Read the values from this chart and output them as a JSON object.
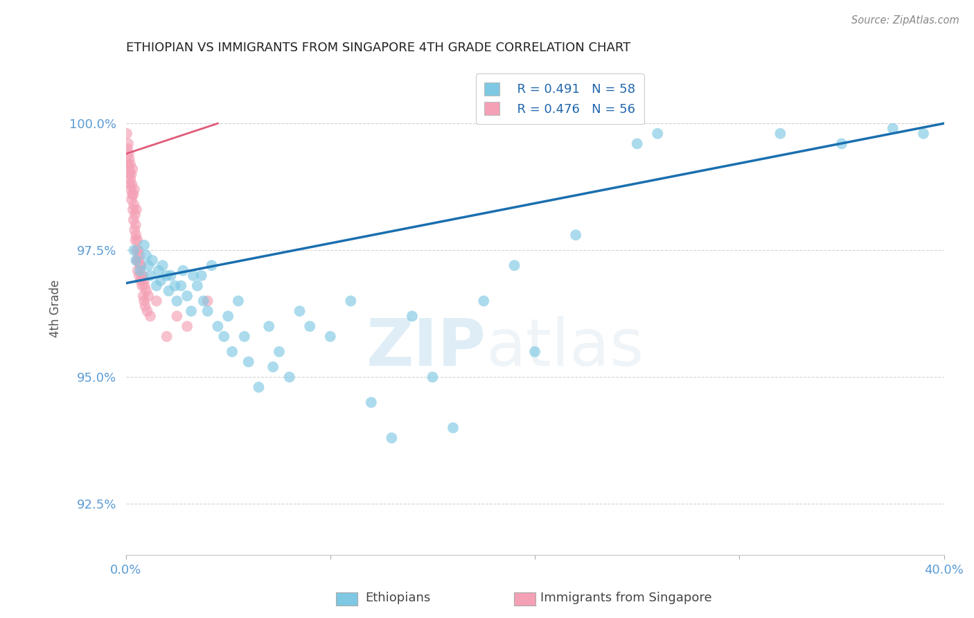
{
  "title": "ETHIOPIAN VS IMMIGRANTS FROM SINGAPORE 4TH GRADE CORRELATION CHART",
  "source": "Source: ZipAtlas.com",
  "ylabel": "4th Grade",
  "xlim": [
    0.0,
    40.0
  ],
  "ylim": [
    91.5,
    101.2
  ],
  "yticks": [
    92.5,
    95.0,
    97.5,
    100.0
  ],
  "ytick_labels": [
    "92.5%",
    "95.0%",
    "97.5%",
    "100.0%"
  ],
  "xticks": [
    0.0,
    10.0,
    20.0,
    30.0,
    40.0
  ],
  "xtick_labels": [
    "0.0%",
    "",
    "",
    "",
    "40.0%"
  ],
  "legend_R_blue": "R = 0.491",
  "legend_N_blue": "N = 58",
  "legend_R_pink": "R = 0.476",
  "legend_N_pink": "N = 56",
  "blue_color": "#7ec8e3",
  "pink_color": "#f4a0b5",
  "blue_line_color": "#1a6faf",
  "pink_line_color": "#e05a7a",
  "blue_scatter": [
    [
      0.4,
      97.5
    ],
    [
      0.5,
      97.3
    ],
    [
      0.7,
      97.1
    ],
    [
      0.9,
      97.6
    ],
    [
      1.0,
      97.4
    ],
    [
      1.1,
      97.2
    ],
    [
      1.2,
      97.0
    ],
    [
      1.3,
      97.3
    ],
    [
      1.5,
      96.8
    ],
    [
      1.6,
      97.1
    ],
    [
      1.7,
      96.9
    ],
    [
      1.8,
      97.2
    ],
    [
      2.0,
      97.0
    ],
    [
      2.1,
      96.7
    ],
    [
      2.2,
      97.0
    ],
    [
      2.4,
      96.8
    ],
    [
      2.5,
      96.5
    ],
    [
      2.7,
      96.8
    ],
    [
      2.8,
      97.1
    ],
    [
      3.0,
      96.6
    ],
    [
      3.2,
      96.3
    ],
    [
      3.3,
      97.0
    ],
    [
      3.5,
      96.8
    ],
    [
      3.7,
      97.0
    ],
    [
      3.8,
      96.5
    ],
    [
      4.0,
      96.3
    ],
    [
      4.2,
      97.2
    ],
    [
      4.5,
      96.0
    ],
    [
      4.8,
      95.8
    ],
    [
      5.0,
      96.2
    ],
    [
      5.2,
      95.5
    ],
    [
      5.5,
      96.5
    ],
    [
      5.8,
      95.8
    ],
    [
      6.0,
      95.3
    ],
    [
      6.5,
      94.8
    ],
    [
      7.0,
      96.0
    ],
    [
      7.2,
      95.2
    ],
    [
      7.5,
      95.5
    ],
    [
      8.0,
      95.0
    ],
    [
      8.5,
      96.3
    ],
    [
      9.0,
      96.0
    ],
    [
      10.0,
      95.8
    ],
    [
      11.0,
      96.5
    ],
    [
      12.0,
      94.5
    ],
    [
      13.0,
      93.8
    ],
    [
      14.0,
      96.2
    ],
    [
      15.0,
      95.0
    ],
    [
      16.0,
      94.0
    ],
    [
      17.5,
      96.5
    ],
    [
      19.0,
      97.2
    ],
    [
      20.0,
      95.5
    ],
    [
      22.0,
      97.8
    ],
    [
      25.0,
      99.6
    ],
    [
      26.0,
      99.8
    ],
    [
      32.0,
      99.8
    ],
    [
      35.0,
      99.6
    ],
    [
      37.5,
      99.9
    ],
    [
      39.0,
      99.8
    ]
  ],
  "pink_scatter": [
    [
      0.05,
      99.8
    ],
    [
      0.08,
      99.5
    ],
    [
      0.1,
      99.2
    ],
    [
      0.12,
      99.6
    ],
    [
      0.14,
      99.4
    ],
    [
      0.15,
      99.1
    ],
    [
      0.17,
      99.3
    ],
    [
      0.18,
      99.0
    ],
    [
      0.2,
      98.8
    ],
    [
      0.22,
      99.2
    ],
    [
      0.23,
      98.9
    ],
    [
      0.25,
      98.7
    ],
    [
      0.27,
      99.0
    ],
    [
      0.28,
      98.5
    ],
    [
      0.3,
      98.8
    ],
    [
      0.32,
      98.6
    ],
    [
      0.33,
      99.1
    ],
    [
      0.35,
      98.3
    ],
    [
      0.37,
      98.6
    ],
    [
      0.38,
      98.1
    ],
    [
      0.4,
      98.4
    ],
    [
      0.42,
      98.7
    ],
    [
      0.43,
      97.9
    ],
    [
      0.45,
      98.2
    ],
    [
      0.47,
      97.7
    ],
    [
      0.48,
      98.0
    ],
    [
      0.5,
      97.8
    ],
    [
      0.52,
      98.3
    ],
    [
      0.53,
      97.5
    ],
    [
      0.55,
      97.3
    ],
    [
      0.57,
      97.7
    ],
    [
      0.58,
      97.1
    ],
    [
      0.6,
      97.5
    ],
    [
      0.62,
      97.3
    ],
    [
      0.65,
      97.0
    ],
    [
      0.67,
      97.4
    ],
    [
      0.7,
      97.2
    ],
    [
      0.73,
      96.9
    ],
    [
      0.75,
      97.2
    ],
    [
      0.77,
      97.0
    ],
    [
      0.8,
      96.8
    ],
    [
      0.83,
      97.0
    ],
    [
      0.85,
      96.6
    ],
    [
      0.88,
      96.9
    ],
    [
      0.9,
      96.5
    ],
    [
      0.92,
      96.8
    ],
    [
      0.95,
      96.4
    ],
    [
      1.0,
      96.7
    ],
    [
      1.05,
      96.3
    ],
    [
      1.1,
      96.6
    ],
    [
      1.2,
      96.2
    ],
    [
      1.5,
      96.5
    ],
    [
      2.0,
      95.8
    ],
    [
      3.0,
      96.0
    ],
    [
      2.5,
      96.2
    ],
    [
      4.0,
      96.5
    ]
  ],
  "blue_trendline": [
    [
      0.0,
      96.85
    ],
    [
      40.0,
      100.0
    ]
  ],
  "pink_trendline": [
    [
      0.0,
      99.4
    ],
    [
      4.5,
      100.0
    ]
  ],
  "watermark_zip": "ZIP",
  "watermark_atlas": "atlas",
  "background_color": "#ffffff",
  "grid_color": "#c8c8c8",
  "title_color": "#222222",
  "tick_label_color": "#5b9bd5",
  "axis_label_color": "#555555"
}
